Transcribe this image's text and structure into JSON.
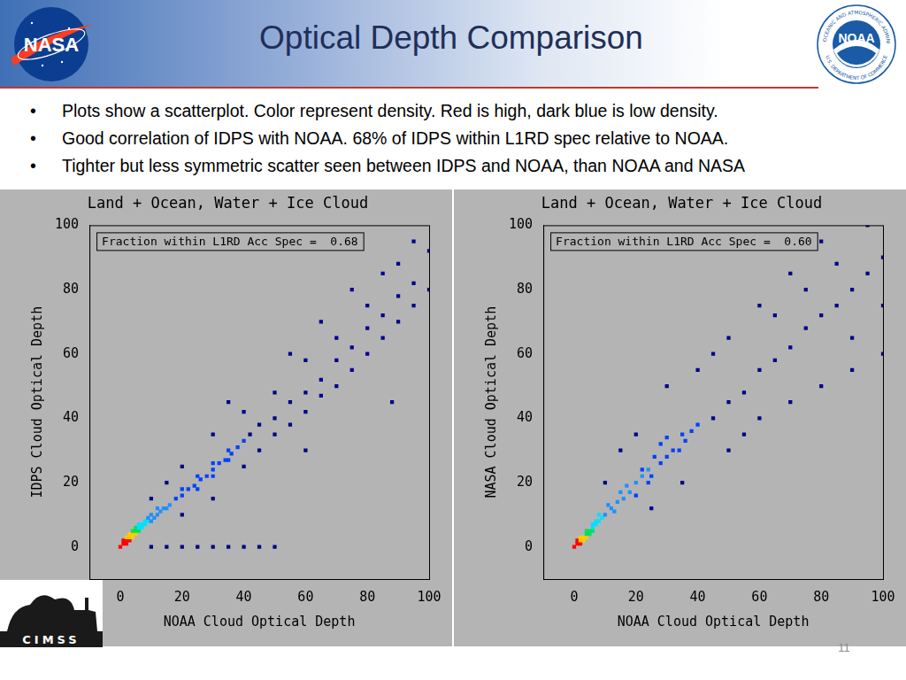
{
  "header": {
    "title": "Optical Depth Comparison",
    "logos": {
      "nasa": "NASA",
      "noaa": "NOAA",
      "noaa_ring_top": "NATIONAL OCEANIC AND ATMOSPHERIC ADMINISTRATION",
      "noaa_ring_bottom": "U.S. DEPARTMENT OF COMMERCE",
      "cimss": "CIMSS"
    }
  },
  "bullets": [
    "Plots show a scatterplot.  Color represent density. Red is high, dark blue is low density.",
    "Good correlation of IDPS with NOAA.  68% of IDPS within L1RD spec relative to NOAA.",
    "Tighter but less symmetric scatter seen between IDPS and NOAA, than NOAA and NASA"
  ],
  "page_number": "11",
  "chart_data": [
    {
      "type": "scatter",
      "title": "Land + Ocean, Water + Ice Cloud",
      "annotation": "Fraction within L1RD Acc Spec =  0.68",
      "x_label": "NOAA Cloud Optical Depth",
      "y_label": "IDPS Cloud Optical Depth",
      "xlim": [
        -10,
        100
      ],
      "ylim": [
        -10,
        100
      ],
      "xticks": [
        0,
        20,
        40,
        60,
        80,
        100
      ],
      "yticks": [
        0,
        20,
        40,
        60,
        80,
        100
      ],
      "grid": false,
      "marker": "square",
      "series": [
        {
          "color": "#00008b",
          "values": [
            [
              42,
              35
            ],
            [
              45,
              38
            ],
            [
              50,
              40
            ],
            [
              55,
              45
            ],
            [
              60,
              48
            ],
            [
              65,
              52
            ],
            [
              70,
              58
            ],
            [
              75,
              62
            ],
            [
              80,
              68
            ],
            [
              85,
              72
            ],
            [
              90,
              78
            ],
            [
              95,
              82
            ],
            [
              100,
              80
            ],
            [
              45,
              30
            ],
            [
              50,
              35
            ],
            [
              55,
              38
            ],
            [
              60,
              42
            ],
            [
              65,
              47
            ],
            [
              70,
              50
            ],
            [
              75,
              55
            ],
            [
              80,
              60
            ],
            [
              85,
              65
            ],
            [
              90,
              70
            ],
            [
              95,
              75
            ],
            [
              50,
              48
            ],
            [
              60,
              58
            ],
            [
              70,
              65
            ],
            [
              80,
              75
            ],
            [
              90,
              88
            ],
            [
              95,
              95
            ],
            [
              40,
              42
            ],
            [
              30,
              35
            ],
            [
              20,
              25
            ],
            [
              15,
              20
            ],
            [
              10,
              15
            ],
            [
              20,
              10
            ],
            [
              30,
              15
            ],
            [
              40,
              25
            ],
            [
              55,
              60
            ],
            [
              65,
              70
            ],
            [
              75,
              80
            ],
            [
              85,
              85
            ],
            [
              100,
              92
            ],
            [
              88,
              45
            ],
            [
              60,
              30
            ],
            [
              35,
              45
            ],
            [
              10,
              0
            ],
            [
              15,
              0
            ],
            [
              20,
              0
            ],
            [
              25,
              0
            ],
            [
              30,
              0
            ],
            [
              35,
              0
            ],
            [
              40,
              0
            ],
            [
              45,
              0
            ],
            [
              50,
              0
            ]
          ]
        },
        {
          "color": "#0040ff",
          "values": [
            [
              18,
              15
            ],
            [
              20,
              16
            ],
            [
              22,
              18
            ],
            [
              24,
              19
            ],
            [
              26,
              21
            ],
            [
              28,
              22
            ],
            [
              30,
              24
            ],
            [
              32,
              26
            ],
            [
              34,
              27
            ],
            [
              36,
              29
            ],
            [
              20,
              18
            ],
            [
              25,
              22
            ],
            [
              30,
              26
            ],
            [
              35,
              30
            ],
            [
              38,
              31
            ],
            [
              40,
              33
            ],
            [
              25,
              18
            ],
            [
              30,
              22
            ],
            [
              35,
              27
            ]
          ]
        },
        {
          "color": "#1e90ff",
          "values": [
            [
              9,
              9
            ],
            [
              10,
              8
            ],
            [
              11,
              9
            ],
            [
              12,
              10
            ],
            [
              13,
              11
            ],
            [
              14,
              12
            ],
            [
              15,
              12
            ],
            [
              10,
              10
            ],
            [
              12,
              12
            ],
            [
              16,
              13
            ]
          ]
        },
        {
          "color": "#00e0ff",
          "values": [
            [
              6,
              6
            ],
            [
              7,
              6
            ],
            [
              7,
              7
            ],
            [
              8,
              7
            ],
            [
              6,
              7
            ],
            [
              8,
              8
            ],
            [
              9,
              8
            ]
          ]
        },
        {
          "color": "#00e060",
          "values": [
            [
              5,
              5
            ],
            [
              4,
              5
            ],
            [
              6,
              5
            ],
            [
              5,
              6
            ]
          ]
        },
        {
          "color": "#ffcc00",
          "values": [
            [
              3,
              3
            ],
            [
              4,
              3
            ],
            [
              3,
              4
            ],
            [
              4,
              4
            ],
            [
              2,
              3
            ],
            [
              5,
              4
            ]
          ]
        },
        {
          "color": "#ff0000",
          "values": [
            [
              0,
              0
            ],
            [
              1,
              1
            ],
            [
              2,
              2
            ],
            [
              1,
              2
            ],
            [
              3,
              2
            ],
            [
              2,
              1
            ]
          ]
        }
      ]
    },
    {
      "type": "scatter",
      "title": "Land + Ocean, Water + Ice Cloud",
      "annotation": "Fraction within L1RD Acc Spec =  0.60",
      "x_label": "NOAA Cloud Optical Depth",
      "y_label": "NASA Cloud Optical Depth",
      "xlim": [
        -10,
        100
      ],
      "ylim": [
        -10,
        100
      ],
      "xticks": [
        0,
        20,
        40,
        60,
        80,
        100
      ],
      "yticks": [
        0,
        20,
        40,
        60,
        80,
        100
      ],
      "grid": false,
      "marker": "square",
      "series": [
        {
          "color": "#00008b",
          "values": [
            [
              45,
              40
            ],
            [
              50,
              45
            ],
            [
              55,
              48
            ],
            [
              60,
              55
            ],
            [
              65,
              58
            ],
            [
              70,
              62
            ],
            [
              75,
              68
            ],
            [
              80,
              72
            ],
            [
              85,
              75
            ],
            [
              90,
              80
            ],
            [
              95,
              85
            ],
            [
              100,
              90
            ],
            [
              50,
              30
            ],
            [
              55,
              35
            ],
            [
              60,
              40
            ],
            [
              70,
              45
            ],
            [
              80,
              50
            ],
            [
              90,
              55
            ],
            [
              100,
              60
            ],
            [
              40,
              55
            ],
            [
              50,
              65
            ],
            [
              60,
              75
            ],
            [
              70,
              85
            ],
            [
              80,
              95
            ],
            [
              30,
              50
            ],
            [
              45,
              60
            ],
            [
              20,
              35
            ],
            [
              15,
              30
            ],
            [
              10,
              20
            ],
            [
              35,
              20
            ],
            [
              25,
              12
            ],
            [
              65,
              72
            ],
            [
              75,
              80
            ],
            [
              85,
              88
            ],
            [
              95,
              100
            ],
            [
              90,
              65
            ],
            [
              100,
              75
            ]
          ]
        },
        {
          "color": "#0040ff",
          "values": [
            [
              20,
              16
            ],
            [
              25,
              22
            ],
            [
              28,
              26
            ],
            [
              30,
              28
            ],
            [
              32,
              30
            ],
            [
              26,
              28
            ],
            [
              22,
              24
            ],
            [
              34,
              30
            ],
            [
              36,
              33
            ],
            [
              38,
              36
            ],
            [
              40,
              38
            ],
            [
              30,
              34
            ],
            [
              35,
              35
            ],
            [
              28,
              32
            ],
            [
              24,
              20
            ]
          ]
        },
        {
          "color": "#1e90ff",
          "values": [
            [
              10,
              10
            ],
            [
              12,
              12
            ],
            [
              14,
              14
            ],
            [
              16,
              15
            ],
            [
              18,
              17
            ],
            [
              11,
              13
            ],
            [
              13,
              11
            ],
            [
              15,
              17
            ],
            [
              17,
              19
            ],
            [
              20,
              20
            ],
            [
              22,
              22
            ],
            [
              24,
              24
            ]
          ]
        },
        {
          "color": "#00e0ff",
          "values": [
            [
              6,
              6
            ],
            [
              7,
              7
            ],
            [
              8,
              8
            ],
            [
              6,
              7
            ],
            [
              7,
              8
            ],
            [
              9,
              9
            ],
            [
              8,
              10
            ]
          ]
        },
        {
          "color": "#00e060",
          "values": [
            [
              4,
              4
            ],
            [
              5,
              5
            ],
            [
              4,
              5
            ],
            [
              5,
              4
            ],
            [
              6,
              5
            ]
          ]
        },
        {
          "color": "#ffcc00",
          "values": [
            [
              2,
              2
            ],
            [
              3,
              3
            ],
            [
              2,
              3
            ],
            [
              3,
              2
            ],
            [
              4,
              3
            ]
          ]
        },
        {
          "color": "#ff0000",
          "values": [
            [
              0,
              0
            ],
            [
              1,
              1
            ],
            [
              2,
              1
            ],
            [
              1,
              2
            ]
          ]
        }
      ]
    }
  ]
}
